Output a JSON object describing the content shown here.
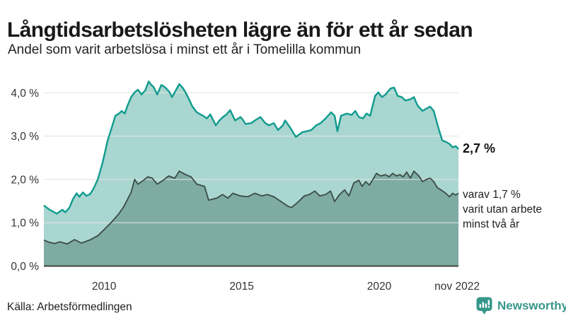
{
  "header": {
    "title": "Långtidsarbetslösheten lägre än för ett år sedan",
    "subtitle": "Andel som varit arbetslösa i minst ett år i Tomelilla kommun"
  },
  "annotations": {
    "total_label": "2,7 %",
    "sub_lines": [
      "varav 1,7 %",
      "varit utan arbete",
      "minst två år"
    ]
  },
  "footer": {
    "source": "Källa: Arbetsförmedlingen",
    "brand": "Newsworthy"
  },
  "colors": {
    "brand": "#37968b",
    "line_total": "#0f9b8e",
    "fill_total": "#a9d6d0",
    "line_two_year": "#3b4b46",
    "fill_two_year": "#7eaba4",
    "grid": "#e0e4e5",
    "axis": "#3c4642",
    "tick_text": "#333333"
  },
  "chart_data": {
    "type": "area",
    "title": "Andel som varit arbetslösa i minst ett år i Tomelilla kommun",
    "xlabel": "",
    "ylabel": "",
    "unit": "%",
    "grid": true,
    "legend": "none (direct labels at line ends)",
    "xlim": [
      2007.81,
      2022.88
    ],
    "ylim": [
      0,
      4.45
    ],
    "yticks": [
      {
        "v": 0,
        "label": "0,0 %"
      },
      {
        "v": 1,
        "label": "1,0 %"
      },
      {
        "v": 2,
        "label": "2,0 %"
      },
      {
        "v": 3,
        "label": "3,0 %"
      },
      {
        "v": 4,
        "label": "4,0 %"
      }
    ],
    "xticks": [
      {
        "t": 2010,
        "label": "2010"
      },
      {
        "t": 2015,
        "label": "2015"
      },
      {
        "t": 2020,
        "label": "2020"
      },
      {
        "t": 2022.83,
        "label": "nov 2022"
      }
    ],
    "series": [
      {
        "name": "Arbetslösa minst ett år",
        "end_value": 2.7,
        "points": [
          [
            2007.81,
            1.4
          ],
          [
            2008.02,
            1.3
          ],
          [
            2008.28,
            1.21
          ],
          [
            2008.48,
            1.3
          ],
          [
            2008.59,
            1.24
          ],
          [
            2008.74,
            1.35
          ],
          [
            2008.87,
            1.55
          ],
          [
            2009.0,
            1.68
          ],
          [
            2009.1,
            1.6
          ],
          [
            2009.23,
            1.7
          ],
          [
            2009.36,
            1.62
          ],
          [
            2009.49,
            1.66
          ],
          [
            2009.61,
            1.78
          ],
          [
            2009.77,
            2.0
          ],
          [
            2009.95,
            2.4
          ],
          [
            2010.13,
            2.9
          ],
          [
            2010.28,
            3.2
          ],
          [
            2010.41,
            3.47
          ],
          [
            2010.54,
            3.52
          ],
          [
            2010.64,
            3.58
          ],
          [
            2010.75,
            3.52
          ],
          [
            2010.85,
            3.7
          ],
          [
            2010.98,
            3.9
          ],
          [
            2011.11,
            4.01
          ],
          [
            2011.23,
            4.07
          ],
          [
            2011.36,
            3.96
          ],
          [
            2011.49,
            4.05
          ],
          [
            2011.62,
            4.26
          ],
          [
            2011.72,
            4.18
          ],
          [
            2011.8,
            4.13
          ],
          [
            2011.93,
            3.96
          ],
          [
            2012.08,
            4.18
          ],
          [
            2012.19,
            4.14
          ],
          [
            2012.26,
            4.1
          ],
          [
            2012.37,
            4.02
          ],
          [
            2012.47,
            3.9
          ],
          [
            2012.6,
            4.05
          ],
          [
            2012.73,
            4.2
          ],
          [
            2012.85,
            4.12
          ],
          [
            2012.96,
            4.01
          ],
          [
            2013.11,
            3.82
          ],
          [
            2013.21,
            3.68
          ],
          [
            2013.37,
            3.55
          ],
          [
            2013.5,
            3.5
          ],
          [
            2013.6,
            3.47
          ],
          [
            2013.73,
            3.41
          ],
          [
            2013.86,
            3.5
          ],
          [
            2013.98,
            3.35
          ],
          [
            2014.06,
            3.25
          ],
          [
            2014.19,
            3.36
          ],
          [
            2014.32,
            3.44
          ],
          [
            2014.45,
            3.5
          ],
          [
            2014.58,
            3.6
          ],
          [
            2014.68,
            3.47
          ],
          [
            2014.76,
            3.36
          ],
          [
            2014.86,
            3.4
          ],
          [
            2014.96,
            3.44
          ],
          [
            2015.06,
            3.36
          ],
          [
            2015.14,
            3.28
          ],
          [
            2015.35,
            3.3
          ],
          [
            2015.48,
            3.36
          ],
          [
            2015.68,
            3.44
          ],
          [
            2015.86,
            3.3
          ],
          [
            2015.99,
            3.25
          ],
          [
            2016.17,
            3.3
          ],
          [
            2016.32,
            3.14
          ],
          [
            2016.5,
            3.25
          ],
          [
            2016.58,
            3.36
          ],
          [
            2016.76,
            3.2
          ],
          [
            2016.97,
            2.98
          ],
          [
            2017.2,
            3.09
          ],
          [
            2017.35,
            3.11
          ],
          [
            2017.53,
            3.14
          ],
          [
            2017.71,
            3.25
          ],
          [
            2017.87,
            3.3
          ],
          [
            2018.05,
            3.41
          ],
          [
            2018.25,
            3.55
          ],
          [
            2018.38,
            3.47
          ],
          [
            2018.48,
            3.11
          ],
          [
            2018.61,
            3.47
          ],
          [
            2018.82,
            3.52
          ],
          [
            2019.0,
            3.49
          ],
          [
            2019.13,
            3.58
          ],
          [
            2019.26,
            3.44
          ],
          [
            2019.41,
            3.41
          ],
          [
            2019.54,
            3.52
          ],
          [
            2019.67,
            3.47
          ],
          [
            2019.85,
            3.93
          ],
          [
            2019.97,
            4.01
          ],
          [
            2020.1,
            3.9
          ],
          [
            2020.23,
            3.96
          ],
          [
            2020.41,
            4.1
          ],
          [
            2020.54,
            4.12
          ],
          [
            2020.67,
            3.93
          ],
          [
            2020.82,
            3.9
          ],
          [
            2020.95,
            3.82
          ],
          [
            2021.13,
            3.85
          ],
          [
            2021.26,
            3.9
          ],
          [
            2021.39,
            3.71
          ],
          [
            2021.57,
            3.58
          ],
          [
            2021.7,
            3.63
          ],
          [
            2021.85,
            3.68
          ],
          [
            2021.98,
            3.58
          ],
          [
            2022.16,
            3.17
          ],
          [
            2022.29,
            2.9
          ],
          [
            2022.42,
            2.87
          ],
          [
            2022.55,
            2.82
          ],
          [
            2022.67,
            2.74
          ],
          [
            2022.78,
            2.77
          ],
          [
            2022.88,
            2.7
          ]
        ]
      },
      {
        "name": "Varav utan arbete minst två år",
        "end_value": 1.7,
        "points": [
          [
            2007.81,
            0.6
          ],
          [
            2008.0,
            0.55
          ],
          [
            2008.2,
            0.52
          ],
          [
            2008.4,
            0.56
          ],
          [
            2008.66,
            0.51
          ],
          [
            2008.92,
            0.61
          ],
          [
            2009.18,
            0.53
          ],
          [
            2009.51,
            0.61
          ],
          [
            2009.77,
            0.7
          ],
          [
            2010.03,
            0.86
          ],
          [
            2010.28,
            1.02
          ],
          [
            2010.54,
            1.21
          ],
          [
            2010.72,
            1.38
          ],
          [
            2010.98,
            1.7
          ],
          [
            2011.11,
            2.0
          ],
          [
            2011.23,
            1.89
          ],
          [
            2011.41,
            1.97
          ],
          [
            2011.59,
            2.06
          ],
          [
            2011.75,
            2.03
          ],
          [
            2011.93,
            1.89
          ],
          [
            2012.19,
            2.0
          ],
          [
            2012.34,
            2.08
          ],
          [
            2012.57,
            2.03
          ],
          [
            2012.73,
            2.19
          ],
          [
            2012.96,
            2.11
          ],
          [
            2013.16,
            2.06
          ],
          [
            2013.37,
            1.89
          ],
          [
            2013.65,
            1.84
          ],
          [
            2013.8,
            1.52
          ],
          [
            2014.1,
            1.57
          ],
          [
            2014.3,
            1.65
          ],
          [
            2014.5,
            1.57
          ],
          [
            2014.68,
            1.68
          ],
          [
            2014.94,
            1.62
          ],
          [
            2015.22,
            1.6
          ],
          [
            2015.48,
            1.68
          ],
          [
            2015.73,
            1.62
          ],
          [
            2015.94,
            1.65
          ],
          [
            2016.17,
            1.6
          ],
          [
            2016.43,
            1.49
          ],
          [
            2016.68,
            1.38
          ],
          [
            2016.81,
            1.35
          ],
          [
            2017.02,
            1.46
          ],
          [
            2017.28,
            1.62
          ],
          [
            2017.46,
            1.65
          ],
          [
            2017.66,
            1.73
          ],
          [
            2017.84,
            1.62
          ],
          [
            2018.05,
            1.65
          ],
          [
            2018.23,
            1.73
          ],
          [
            2018.38,
            1.49
          ],
          [
            2018.56,
            1.65
          ],
          [
            2018.74,
            1.76
          ],
          [
            2018.9,
            1.62
          ],
          [
            2019.08,
            1.92
          ],
          [
            2019.26,
            1.98
          ],
          [
            2019.38,
            1.84
          ],
          [
            2019.51,
            1.95
          ],
          [
            2019.64,
            1.87
          ],
          [
            2019.8,
            2.03
          ],
          [
            2019.9,
            2.14
          ],
          [
            2020.05,
            2.08
          ],
          [
            2020.23,
            2.11
          ],
          [
            2020.36,
            2.06
          ],
          [
            2020.49,
            2.14
          ],
          [
            2020.62,
            2.08
          ],
          [
            2020.75,
            2.11
          ],
          [
            2020.87,
            2.06
          ],
          [
            2021.0,
            2.17
          ],
          [
            2021.13,
            2.03
          ],
          [
            2021.26,
            2.19
          ],
          [
            2021.44,
            2.08
          ],
          [
            2021.57,
            1.95
          ],
          [
            2021.72,
            2.0
          ],
          [
            2021.85,
            2.03
          ],
          [
            2021.98,
            1.95
          ],
          [
            2022.11,
            1.81
          ],
          [
            2022.24,
            1.76
          ],
          [
            2022.42,
            1.68
          ],
          [
            2022.55,
            1.6
          ],
          [
            2022.67,
            1.68
          ],
          [
            2022.78,
            1.64
          ],
          [
            2022.88,
            1.68
          ]
        ]
      }
    ]
  }
}
